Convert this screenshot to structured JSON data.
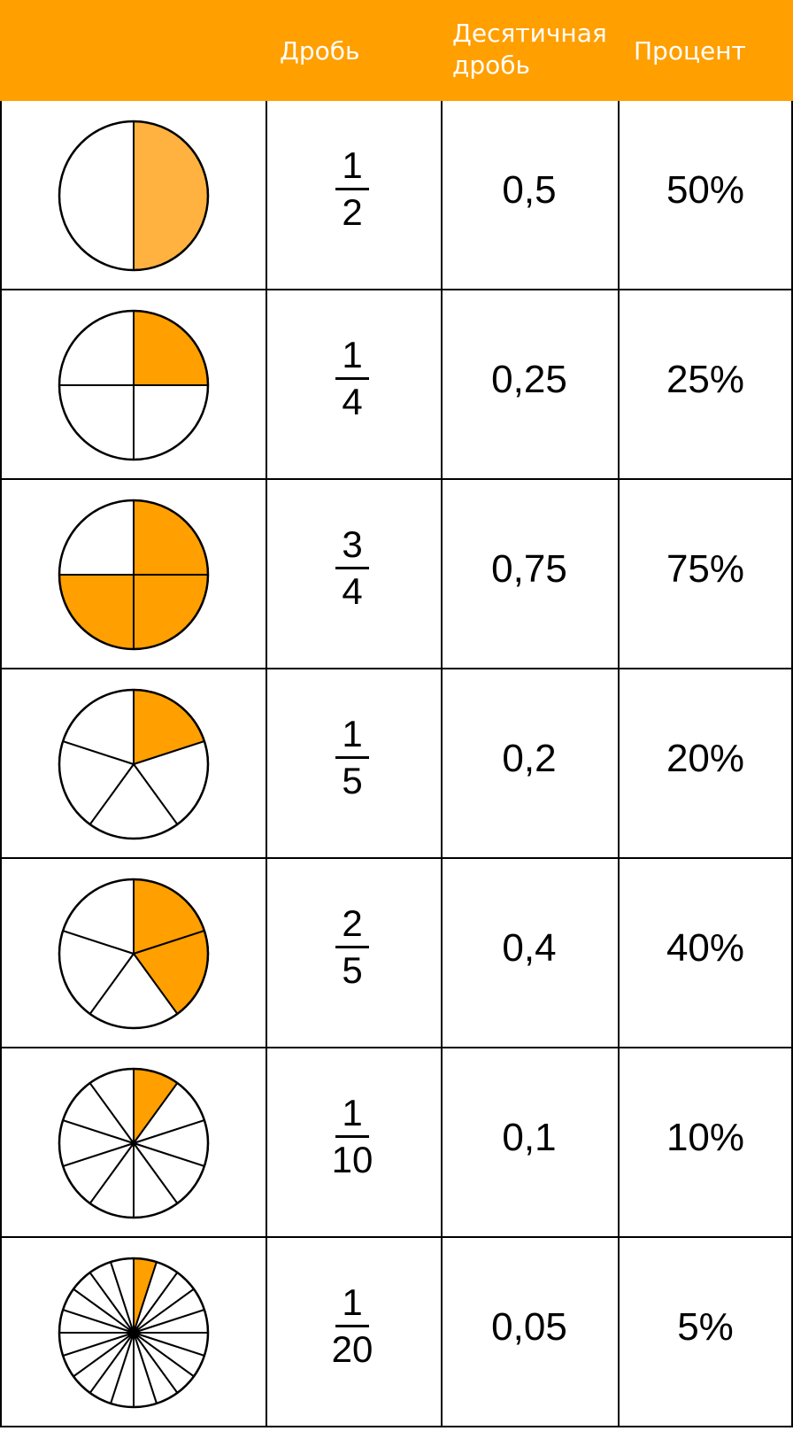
{
  "header": {
    "col_fraction": "Дробь",
    "col_decimal_line1": "Десятичная",
    "col_decimal_line2": "дробь",
    "col_percent": "Процент"
  },
  "colors": {
    "header": "#FF9F00",
    "fill": "#FF9F00",
    "fill_light": "#FFB23F"
  },
  "rows": [
    {
      "numerator": "1",
      "denominator": "2",
      "decimal": "0,5",
      "percent": "50%",
      "parts": 2,
      "shaded": 1,
      "color": "#FFB23F"
    },
    {
      "numerator": "1",
      "denominator": "4",
      "decimal": "0,25",
      "percent": "25%",
      "parts": 4,
      "shaded": 1,
      "color": "#FF9F00"
    },
    {
      "numerator": "3",
      "denominator": "4",
      "decimal": "0,75",
      "percent": "75%",
      "parts": 4,
      "shaded": 3,
      "color": "#FF9F00"
    },
    {
      "numerator": "1",
      "denominator": "5",
      "decimal": "0,2",
      "percent": "20%",
      "parts": 5,
      "shaded": 1,
      "color": "#FF9F00"
    },
    {
      "numerator": "2",
      "denominator": "5",
      "decimal": "0,4",
      "percent": "40%",
      "parts": 5,
      "shaded": 2,
      "color": "#FF9F00"
    },
    {
      "numerator": "1",
      "denominator": "10",
      "decimal": "0,1",
      "percent": "10%",
      "parts": 10,
      "shaded": 1,
      "color": "#FF9F00"
    },
    {
      "numerator": "1",
      "denominator": "20",
      "decimal": "0,05",
      "percent": "5%",
      "parts": 20,
      "shaded": 1,
      "color": "#FF9F00"
    }
  ]
}
